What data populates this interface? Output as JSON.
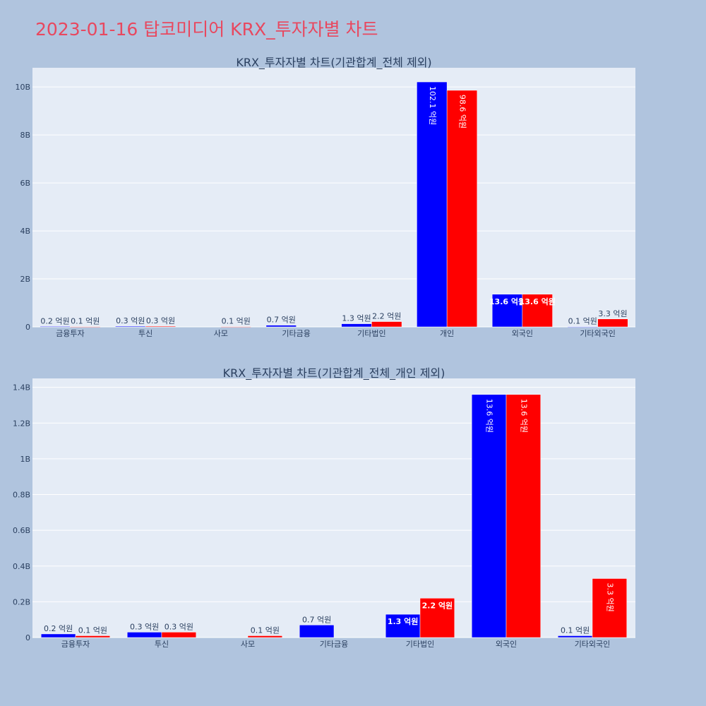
{
  "title": "2023-01-16 탑코미디어 KRX_투자자별 차트",
  "colors": {
    "buy": "#0000ff",
    "sell": "#ff0000",
    "plot_bg": "#e5ecf6",
    "page_bg": "#b0c4de",
    "title": "#e8485f"
  },
  "chart_data": [
    {
      "type": "bar",
      "title": "KRX_투자자별 차트(기관합계_전체 제외)",
      "categories": [
        "금융투자",
        "투신",
        "사모",
        "기타금융",
        "기타법인",
        "개인",
        "외국인",
        "기타외국인"
      ],
      "ylim": [
        0,
        10800000000
      ],
      "yticks": [
        0,
        2000000000,
        4000000000,
        6000000000,
        8000000000,
        10000000000
      ],
      "ytick_labels": [
        "0",
        "2B",
        "4B",
        "6B",
        "8B",
        "10B"
      ],
      "grid": true,
      "series": [
        {
          "values": [
            20000000,
            30000000,
            0,
            70000000,
            130000000,
            10210000000,
            1360000000,
            10000000
          ],
          "labels": [
            "0.2 억원",
            "0.3 억원",
            "",
            "0.7 억원",
            "1.3 억원",
            "102.1 억원",
            "13.6 억원",
            "0.1 억원"
          ]
        },
        {
          "values": [
            10000000,
            30000000,
            10000000,
            0,
            220000000,
            9860000000,
            1360000000,
            330000000
          ],
          "labels": [
            "0.1 억원",
            "0.3 억원",
            "0.1 억원",
            "",
            "2.2 억원",
            "98.6 억원",
            "13.6 억원",
            "3.3 억원"
          ]
        }
      ]
    },
    {
      "type": "bar",
      "title": "KRX_투자자별 차트(기관합계_전체_개인 제외)",
      "categories": [
        "금융투자",
        "투신",
        "사모",
        "기타금융",
        "기타법인",
        "외국인",
        "기타외국인"
      ],
      "ylim": [
        0,
        1450000000
      ],
      "yticks": [
        0,
        200000000,
        400000000,
        600000000,
        800000000,
        1000000000,
        1200000000,
        1400000000
      ],
      "ytick_labels": [
        "0",
        "0.2B",
        "0.4B",
        "0.6B",
        "0.8B",
        "1B",
        "1.2B",
        "1.4B"
      ],
      "grid": true,
      "series": [
        {
          "values": [
            20000000,
            30000000,
            0,
            70000000,
            130000000,
            1360000000,
            10000000
          ],
          "labels": [
            "0.2 억원",
            "0.3 억원",
            "",
            "0.7 억원",
            "1.3 억원",
            "13.6 억원",
            "0.1 억원"
          ]
        },
        {
          "values": [
            10000000,
            30000000,
            10000000,
            0,
            220000000,
            1360000000,
            330000000
          ],
          "labels": [
            "0.1 억원",
            "0.3 억원",
            "0.1 억원",
            "",
            "2.2 억원",
            "13.6 억원",
            "3.3 억원"
          ]
        }
      ]
    }
  ]
}
